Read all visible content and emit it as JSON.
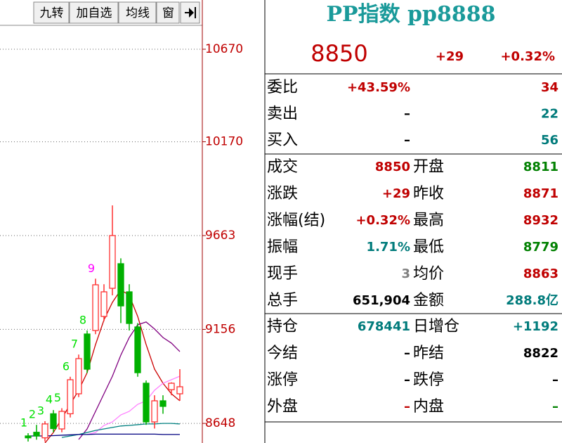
{
  "toolbar": [
    "九转",
    "加自选",
    "均线",
    "窗"
  ],
  "chart_data": {
    "type": "candlestick",
    "ylim": [
      8542,
      10936
    ],
    "yticks": [
      8648,
      9156,
      9663,
      10170,
      10670
    ],
    "grid": true,
    "up_color": "#ff3030",
    "down_color": "#00b000",
    "candles": [
      {
        "open": 8580,
        "high": 8595,
        "low": 8550,
        "close": 8570
      },
      {
        "open": 8600,
        "high": 8640,
        "low": 8560,
        "close": 8580
      },
      {
        "open": 8570,
        "high": 8660,
        "low": 8550,
        "close": 8645
      },
      {
        "open": 8700,
        "high": 8720,
        "low": 8600,
        "close": 8620
      },
      {
        "open": 8618,
        "high": 8730,
        "low": 8600,
        "close": 8713
      },
      {
        "open": 8700,
        "high": 8900,
        "low": 8680,
        "close": 8884
      },
      {
        "open": 8808,
        "high": 9020,
        "low": 8790,
        "close": 8998
      },
      {
        "open": 9131,
        "high": 9150,
        "low": 8920,
        "close": 8941
      },
      {
        "open": 9150,
        "high": 9430,
        "low": 9130,
        "close": 9397
      },
      {
        "open": 9226,
        "high": 9400,
        "low": 9200,
        "close": 9359
      },
      {
        "open": 9378,
        "high": 9826,
        "low": 9340,
        "close": 9663
      },
      {
        "open": 9511,
        "high": 9540,
        "low": 9190,
        "close": 9283
      },
      {
        "open": 9359,
        "high": 9400,
        "low": 9150,
        "close": 9188
      },
      {
        "open": 9169,
        "high": 9190,
        "low": 8900,
        "close": 8922
      },
      {
        "open": 8865,
        "high": 8880,
        "low": 8640,
        "close": 8656
      },
      {
        "open": 8656,
        "high": 8800,
        "low": 8620,
        "close": 8770
      },
      {
        "open": 8770,
        "high": 8800,
        "low": 8700,
        "close": 8740
      },
      {
        "open": 8830,
        "high": 8870,
        "low": 8800,
        "close": 8865
      },
      {
        "open": 8808,
        "high": 8941,
        "low": 8770,
        "close": 8846
      }
    ],
    "td_labels": [
      1,
      2,
      3,
      4,
      5,
      6,
      7,
      8,
      9
    ],
    "td_color": "#00e000",
    "td_last_color": "#ff00ff",
    "lines": [
      {
        "color": "#cc0000",
        "values": [
          null,
          null,
          8542,
          8599,
          8675,
          8751,
          8827,
          8922,
          9074,
          9207,
          9302,
          9370,
          9340,
          9226,
          9074,
          8941,
          8865,
          8808,
          8770
        ]
      },
      {
        "color": "#800080",
        "values": [
          null,
          null,
          null,
          null,
          null,
          null,
          8561,
          8618,
          8713,
          8808,
          8903,
          9017,
          9112,
          9181,
          9196,
          9158,
          9112,
          9082,
          9036
        ]
      },
      {
        "color": "#ff80ff",
        "values": [
          null,
          null,
          null,
          null,
          null,
          null,
          null,
          8588,
          8599,
          8637,
          8656,
          8694,
          8713,
          8751,
          8770,
          8827,
          8865,
          8884,
          8903
        ]
      },
      {
        "color": "#008080",
        "values": [
          null,
          null,
          null,
          null,
          8572,
          8580,
          8588,
          8599,
          8610,
          8618,
          8626,
          8634,
          8637,
          8641,
          8645,
          8645,
          8648,
          8648,
          8645
        ]
      },
      {
        "color": "#000080",
        "values": [
          8580,
          8580,
          8580,
          8582,
          8584,
          8586,
          8588,
          8588,
          8590,
          8590,
          8590,
          8590,
          8590,
          8590,
          8590,
          8590,
          8588,
          8588,
          8588
        ]
      }
    ]
  },
  "quote": {
    "title": "PP指数 pp8888",
    "price": "8850",
    "change": "+29",
    "change_pct": "+0.32%"
  },
  "order_rows": [
    {
      "label": "委比",
      "value": "+43.59%",
      "value_color": "#c00000",
      "count": "34",
      "count_color": "#c00000"
    },
    {
      "label": "卖出",
      "value": "–",
      "value_color": "#000000",
      "count": "22",
      "count_color": "#007b7b"
    },
    {
      "label": "买入",
      "value": "–",
      "value_color": "#000000",
      "count": "56",
      "count_color": "#007b7b"
    }
  ],
  "stats": [
    {
      "label": "成交",
      "value": "8850",
      "color": "#c00000",
      "label2": "开盘",
      "value2": "8811",
      "color2": "#008000"
    },
    {
      "label": "涨跌",
      "value": "+29",
      "color": "#c00000",
      "label2": "昨收",
      "value2": "8871",
      "color2": "#c00000"
    },
    {
      "label": "涨幅(结)",
      "value": "+0.32%",
      "color": "#c00000",
      "label2": "最高",
      "value2": "8932",
      "color2": "#c00000"
    },
    {
      "label": "振幅",
      "value": "1.71%",
      "color": "#007b7b",
      "label2": "最低",
      "value2": "8779",
      "color2": "#008000"
    },
    {
      "label": "现手",
      "value": "3",
      "color": "#808080",
      "label2": "均价",
      "value2": "8863",
      "color2": "#c00000"
    },
    {
      "label": "总手",
      "value": "651,904",
      "color": "#000000",
      "label2": "金额",
      "value2": "288.8亿",
      "color2": "#007b7b"
    }
  ],
  "positions": [
    {
      "label": "持仓",
      "value": "678441",
      "color": "#007b7b",
      "label2": "日增仓",
      "value2": "+1192",
      "color2": "#007b7b"
    },
    {
      "label": "今结",
      "value": "–",
      "color": "#000000",
      "label2": "昨结",
      "value2": "8822",
      "color2": "#000000"
    },
    {
      "label": "涨停",
      "value": "–",
      "color": "#000000",
      "label2": "跌停",
      "value2": "–",
      "color2": "#000000"
    },
    {
      "label": "外盘",
      "value": "–",
      "color": "#c00000",
      "label2": "内盘",
      "value2": "–",
      "color2": "#008000"
    }
  ]
}
